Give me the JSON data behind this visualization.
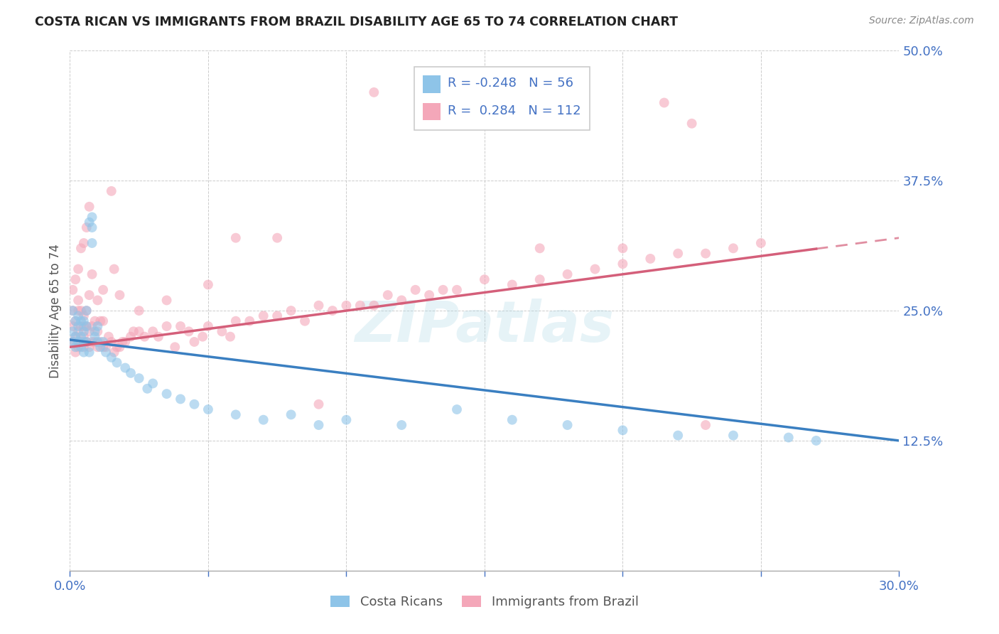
{
  "title": "COSTA RICAN VS IMMIGRANTS FROM BRAZIL DISABILITY AGE 65 TO 74 CORRELATION CHART",
  "source": "Source: ZipAtlas.com",
  "ylabel_label": "Disability Age 65 to 74",
  "x_min": 0.0,
  "x_max": 0.3,
  "y_min": 0.0,
  "y_max": 0.5,
  "x_ticks": [
    0.0,
    0.05,
    0.1,
    0.15,
    0.2,
    0.25,
    0.3
  ],
  "y_ticks": [
    0.0,
    0.125,
    0.25,
    0.375,
    0.5
  ],
  "costa_ricans_R": -0.248,
  "costa_ricans_N": 56,
  "brazil_R": 0.284,
  "brazil_N": 112,
  "legend_label_1": "Costa Ricans",
  "legend_label_2": "Immigrants from Brazil",
  "color_blue": "#8ec4e8",
  "color_pink": "#f4a7b9",
  "color_line_blue": "#3a7fc1",
  "color_line_pink": "#d45f7a",
  "watermark": "ZIPatlas",
  "scatter_alpha": 0.6,
  "marker_size": 100,
  "background_color": "#ffffff",
  "cr_line_x0": 0.0,
  "cr_line_y0": 0.222,
  "cr_line_x1": 0.3,
  "cr_line_y1": 0.125,
  "br_line_x0": 0.0,
  "br_line_y0": 0.215,
  "br_line_x1": 0.3,
  "br_line_y1": 0.32,
  "br_line_solid_end": 0.27,
  "costa_ricans_x": [
    0.001,
    0.001,
    0.001,
    0.002,
    0.002,
    0.002,
    0.003,
    0.003,
    0.003,
    0.004,
    0.004,
    0.004,
    0.005,
    0.005,
    0.005,
    0.005,
    0.006,
    0.006,
    0.006,
    0.007,
    0.007,
    0.008,
    0.008,
    0.008,
    0.009,
    0.009,
    0.01,
    0.01,
    0.011,
    0.012,
    0.013,
    0.015,
    0.017,
    0.02,
    0.022,
    0.025,
    0.028,
    0.03,
    0.035,
    0.04,
    0.045,
    0.05,
    0.06,
    0.07,
    0.08,
    0.09,
    0.1,
    0.12,
    0.14,
    0.16,
    0.18,
    0.2,
    0.22,
    0.24,
    0.26,
    0.27
  ],
  "costa_ricans_y": [
    0.22,
    0.23,
    0.25,
    0.215,
    0.225,
    0.24,
    0.22,
    0.235,
    0.245,
    0.215,
    0.225,
    0.24,
    0.21,
    0.22,
    0.23,
    0.24,
    0.22,
    0.235,
    0.25,
    0.21,
    0.335,
    0.315,
    0.33,
    0.34,
    0.225,
    0.23,
    0.22,
    0.235,
    0.215,
    0.22,
    0.21,
    0.205,
    0.2,
    0.195,
    0.19,
    0.185,
    0.175,
    0.18,
    0.17,
    0.165,
    0.16,
    0.155,
    0.15,
    0.145,
    0.15,
    0.14,
    0.145,
    0.14,
    0.155,
    0.145,
    0.14,
    0.135,
    0.13,
    0.13,
    0.128,
    0.125
  ],
  "brazil_x": [
    0.001,
    0.001,
    0.001,
    0.001,
    0.002,
    0.002,
    0.002,
    0.002,
    0.003,
    0.003,
    0.003,
    0.003,
    0.004,
    0.004,
    0.004,
    0.004,
    0.005,
    0.005,
    0.005,
    0.005,
    0.005,
    0.006,
    0.006,
    0.006,
    0.006,
    0.007,
    0.007,
    0.007,
    0.008,
    0.008,
    0.008,
    0.009,
    0.009,
    0.01,
    0.01,
    0.01,
    0.011,
    0.011,
    0.012,
    0.012,
    0.013,
    0.014,
    0.015,
    0.015,
    0.016,
    0.016,
    0.017,
    0.018,
    0.019,
    0.02,
    0.022,
    0.023,
    0.025,
    0.027,
    0.03,
    0.032,
    0.035,
    0.038,
    0.04,
    0.043,
    0.045,
    0.048,
    0.05,
    0.055,
    0.058,
    0.06,
    0.065,
    0.07,
    0.075,
    0.08,
    0.085,
    0.09,
    0.095,
    0.1,
    0.105,
    0.11,
    0.115,
    0.12,
    0.125,
    0.13,
    0.135,
    0.14,
    0.15,
    0.16,
    0.17,
    0.18,
    0.19,
    0.2,
    0.21,
    0.22,
    0.23,
    0.24,
    0.25,
    0.003,
    0.007,
    0.012,
    0.018,
    0.025,
    0.035,
    0.05,
    0.06,
    0.075,
    0.09,
    0.11,
    0.14,
    0.17,
    0.2,
    0.23,
    0.215,
    0.225
  ],
  "brazil_y": [
    0.22,
    0.235,
    0.25,
    0.27,
    0.21,
    0.225,
    0.24,
    0.28,
    0.215,
    0.23,
    0.25,
    0.29,
    0.22,
    0.235,
    0.25,
    0.31,
    0.215,
    0.225,
    0.235,
    0.245,
    0.315,
    0.22,
    0.235,
    0.25,
    0.33,
    0.215,
    0.23,
    0.35,
    0.22,
    0.235,
    0.285,
    0.22,
    0.24,
    0.215,
    0.23,
    0.26,
    0.22,
    0.24,
    0.215,
    0.24,
    0.215,
    0.225,
    0.22,
    0.365,
    0.21,
    0.29,
    0.215,
    0.215,
    0.22,
    0.22,
    0.225,
    0.23,
    0.23,
    0.225,
    0.23,
    0.225,
    0.235,
    0.215,
    0.235,
    0.23,
    0.22,
    0.225,
    0.235,
    0.23,
    0.225,
    0.24,
    0.24,
    0.245,
    0.245,
    0.25,
    0.24,
    0.255,
    0.25,
    0.255,
    0.255,
    0.255,
    0.265,
    0.26,
    0.27,
    0.265,
    0.27,
    0.27,
    0.28,
    0.275,
    0.28,
    0.285,
    0.29,
    0.295,
    0.3,
    0.305,
    0.305,
    0.31,
    0.315,
    0.26,
    0.265,
    0.27,
    0.265,
    0.25,
    0.26,
    0.275,
    0.32,
    0.32,
    0.16,
    0.46,
    0.46,
    0.31,
    0.31,
    0.14,
    0.45,
    0.43
  ]
}
